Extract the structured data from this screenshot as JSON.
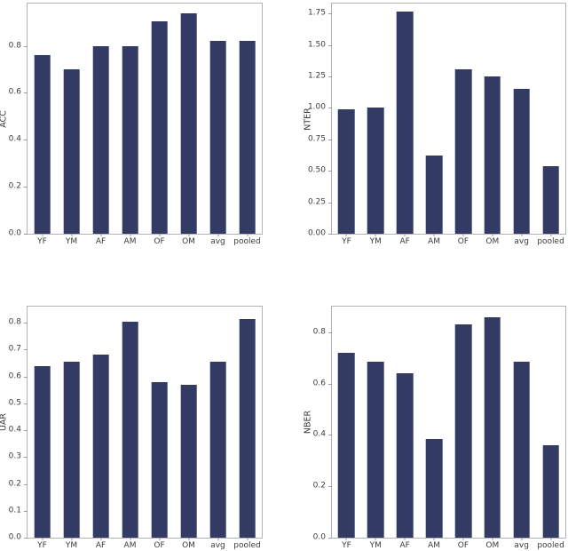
{
  "figure": {
    "background": "#ffffff",
    "bar_color": "#333b64",
    "spine_color": "#b2b2ba",
    "tick_mark_color": "#9a9aa0",
    "text_color": "#3c3c3c"
  },
  "chart_data": [
    {
      "type": "bar",
      "position": "top-left",
      "title": "",
      "xlabel": "",
      "ylabel": "ACC",
      "categories": [
        "YF",
        "YM",
        "AF",
        "AM",
        "OF",
        "OM",
        "avg",
        "pooled"
      ],
      "values": [
        0.76,
        0.7,
        0.8,
        0.8,
        0.905,
        0.94,
        0.82,
        0.82
      ],
      "yticks": [
        0.0,
        0.2,
        0.4,
        0.6,
        0.8
      ],
      "ytick_labels": [
        "0.0",
        "0.2",
        "0.4",
        "0.6",
        "0.8"
      ],
      "ylim": [
        0,
        0.98
      ],
      "grid": false,
      "legend": null
    },
    {
      "type": "bar",
      "position": "top-right",
      "title": "",
      "xlabel": "",
      "ylabel": "NTER",
      "categories": [
        "YF",
        "YM",
        "AF",
        "AM",
        "OF",
        "OM",
        "avg",
        "pooled"
      ],
      "values": [
        0.99,
        1.0,
        1.77,
        0.62,
        1.31,
        1.25,
        1.155,
        0.54
      ],
      "yticks": [
        0.0,
        0.25,
        0.5,
        0.75,
        1.0,
        1.25,
        1.5,
        1.75
      ],
      "ytick_labels": [
        "0.00",
        "0.25",
        "0.50",
        "0.75",
        "1.00",
        "1.25",
        "1.50",
        "1.75"
      ],
      "ylim": [
        0,
        1.83
      ],
      "grid": false,
      "legend": null
    },
    {
      "type": "bar",
      "position": "bottom-left",
      "title": "",
      "xlabel": "",
      "ylabel": "UAR",
      "categories": [
        "YF",
        "YM",
        "AF",
        "AM",
        "OF",
        "OM",
        "avg",
        "pooled"
      ],
      "values": [
        0.64,
        0.655,
        0.68,
        0.805,
        0.58,
        0.57,
        0.655,
        0.815
      ],
      "yticks": [
        0.0,
        0.1,
        0.2,
        0.3,
        0.4,
        0.5,
        0.6,
        0.7,
        0.8
      ],
      "ytick_labels": [
        "0.0",
        "0.1",
        "0.2",
        "0.3",
        "0.4",
        "0.5",
        "0.6",
        "0.7",
        "0.8"
      ],
      "ylim": [
        0,
        0.86
      ],
      "grid": false,
      "legend": null
    },
    {
      "type": "bar",
      "position": "bottom-right",
      "title": "",
      "xlabel": "",
      "ylabel": "NBER",
      "categories": [
        "YF",
        "YM",
        "AF",
        "AM",
        "OF",
        "OM",
        "avg",
        "pooled"
      ],
      "values": [
        0.72,
        0.685,
        0.64,
        0.385,
        0.83,
        0.86,
        0.685,
        0.36
      ],
      "yticks": [
        0.0,
        0.2,
        0.4,
        0.6,
        0.8
      ],
      "ytick_labels": [
        "0.0",
        "0.2",
        "0.4",
        "0.6",
        "0.8"
      ],
      "ylim": [
        0,
        0.9
      ],
      "grid": false,
      "legend": null
    }
  ]
}
